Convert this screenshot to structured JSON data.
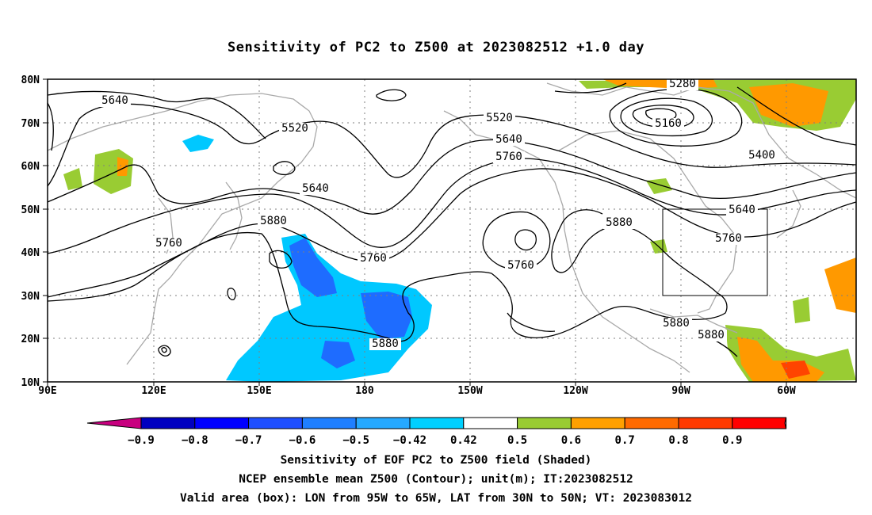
{
  "title": "Sensitivity of PC2 to Z500 at 2023082512 +1.0 day",
  "map": {
    "lat_labels": [
      "80N",
      "70N",
      "60N",
      "50N",
      "40N",
      "30N",
      "20N",
      "10N"
    ],
    "lon_labels": [
      "90E",
      "120E",
      "150E",
      "180",
      "150W",
      "120W",
      "90W",
      "60W"
    ],
    "contour_labels": [
      {
        "text": "5640"
      },
      {
        "text": "5520"
      },
      {
        "text": "5520"
      },
      {
        "text": "5640"
      },
      {
        "text": "5760"
      },
      {
        "text": "5640"
      },
      {
        "text": "5760"
      },
      {
        "text": "5880"
      },
      {
        "text": "5760"
      },
      {
        "text": "5760"
      },
      {
        "text": "5880"
      },
      {
        "text": "5880"
      },
      {
        "text": "5880"
      },
      {
        "text": "5880"
      },
      {
        "text": "5280"
      },
      {
        "text": "5160"
      },
      {
        "text": "5400"
      },
      {
        "text": "5640"
      },
      {
        "text": "5760"
      }
    ],
    "colors": {
      "contour": "#000000",
      "coast": "#a9a9a9",
      "grid": "#7f7f7f",
      "blue": "#1e6cff",
      "cyan": "#00c8ff",
      "green": "#99cc33",
      "orange": "#ff9900",
      "red": "#ff4400"
    }
  },
  "colorbar": {
    "tick_labels": [
      "-0.9",
      "-0.8",
      "-0.7",
      "-0.6",
      "-0.5",
      "-0.42",
      "0.42",
      "0.5",
      "0.6",
      "0.7",
      "0.8",
      "0.9"
    ],
    "segment_colors": [
      "#c8007f",
      "#0000c0",
      "#0000ff",
      "#1f4fff",
      "#1f7fff",
      "#26a9ff",
      "#00d0ff",
      "#ffffff",
      "#99cc33",
      "#ffa000",
      "#ff6a00",
      "#ff3a00",
      "#ff0000",
      "#ff99cc"
    ]
  },
  "footer": {
    "line1": "Sensitivity of EOF PC2 to Z500 field (Shaded)",
    "line2": "NCEP ensemble mean Z500 (Contour); unit(m); IT:2023082512",
    "line3": "Valid area (box): LON from 95W to 65W, LAT from 30N to 50N; VT: 2023083012"
  }
}
